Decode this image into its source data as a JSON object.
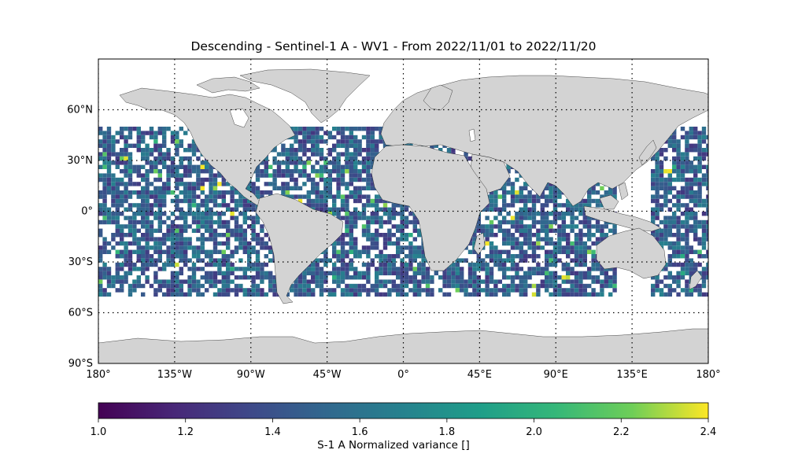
{
  "title": "Descending - Sentinel-1 A - WV1 - From 2022/11/01 to 2022/11/20",
  "map": {
    "projection": "equirectangular",
    "extent_lon": [
      -180,
      180
    ],
    "extent_lat": [
      -90,
      90
    ],
    "land_color": "#d3d3d3",
    "ocean_color": "#ffffff",
    "graticule_style": "dotted",
    "lat_ticks": [
      {
        "value": 60,
        "label": "60°N"
      },
      {
        "value": 30,
        "label": "30°N"
      },
      {
        "value": 0,
        "label": "0°"
      },
      {
        "value": -30,
        "label": "30°S"
      },
      {
        "value": -60,
        "label": "60°S"
      },
      {
        "value": -90,
        "label": "90°S"
      }
    ],
    "lon_ticks": [
      {
        "value": -180,
        "label": "180°"
      },
      {
        "value": -135,
        "label": "135°W"
      },
      {
        "value": -90,
        "label": "90°W"
      },
      {
        "value": -45,
        "label": "45°W"
      },
      {
        "value": 0,
        "label": "0°"
      },
      {
        "value": 45,
        "label": "45°E"
      },
      {
        "value": 90,
        "label": "90°E"
      },
      {
        "value": 135,
        "label": "135°E"
      },
      {
        "value": 180,
        "label": "180°"
      }
    ],
    "data_lat_range": [
      -50,
      50
    ]
  },
  "colorbar": {
    "colormap": "viridis",
    "min": 1.0,
    "max": 2.4,
    "ticks": [
      "1.0",
      "1.2",
      "1.4",
      "1.6",
      "1.8",
      "2.0",
      "2.2",
      "2.4"
    ],
    "label": "S-1 A Normalized variance []"
  }
}
